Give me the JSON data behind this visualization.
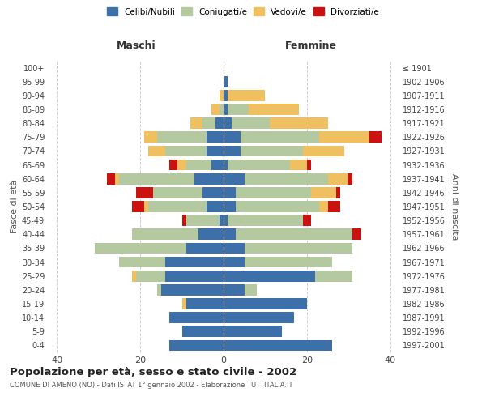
{
  "age_groups": [
    "0-4",
    "5-9",
    "10-14",
    "15-19",
    "20-24",
    "25-29",
    "30-34",
    "35-39",
    "40-44",
    "45-49",
    "50-54",
    "55-59",
    "60-64",
    "65-69",
    "70-74",
    "75-79",
    "80-84",
    "85-89",
    "90-94",
    "95-99",
    "100+"
  ],
  "birth_years": [
    "1997-2001",
    "1992-1996",
    "1987-1991",
    "1982-1986",
    "1977-1981",
    "1972-1976",
    "1967-1971",
    "1962-1966",
    "1957-1961",
    "1952-1956",
    "1947-1951",
    "1942-1946",
    "1937-1941",
    "1932-1936",
    "1927-1931",
    "1922-1926",
    "1917-1921",
    "1912-1916",
    "1907-1911",
    "1902-1906",
    "≤ 1901"
  ],
  "colors": {
    "celibe": "#3d6fa8",
    "coniugato": "#b5c9a0",
    "vedovo": "#f0c060",
    "divorziato": "#cc1111"
  },
  "maschi": {
    "celibe": [
      13,
      10,
      13,
      9,
      15,
      14,
      14,
      9,
      6,
      1,
      4,
      5,
      7,
      3,
      4,
      4,
      2,
      0,
      0,
      0,
      0
    ],
    "coniugato": [
      0,
      0,
      0,
      0,
      1,
      7,
      11,
      22,
      16,
      8,
      14,
      12,
      18,
      6,
      10,
      12,
      3,
      1,
      0,
      0,
      0
    ],
    "vedovo": [
      0,
      0,
      0,
      1,
      0,
      1,
      0,
      0,
      0,
      0,
      1,
      0,
      1,
      2,
      4,
      3,
      3,
      2,
      1,
      0,
      0
    ],
    "divorziato": [
      0,
      0,
      0,
      0,
      0,
      0,
      0,
      0,
      0,
      1,
      3,
      4,
      2,
      2,
      0,
      0,
      0,
      0,
      0,
      0,
      0
    ]
  },
  "femmine": {
    "celibe": [
      26,
      14,
      17,
      20,
      5,
      22,
      5,
      5,
      3,
      1,
      3,
      3,
      5,
      1,
      4,
      4,
      2,
      1,
      1,
      1,
      0
    ],
    "coniugato": [
      0,
      0,
      0,
      0,
      3,
      9,
      21,
      26,
      28,
      18,
      20,
      18,
      20,
      15,
      15,
      19,
      9,
      5,
      0,
      0,
      0
    ],
    "vedovo": [
      0,
      0,
      0,
      0,
      0,
      0,
      0,
      0,
      0,
      0,
      2,
      6,
      5,
      4,
      10,
      12,
      14,
      12,
      9,
      0,
      0
    ],
    "divorziato": [
      0,
      0,
      0,
      0,
      0,
      0,
      0,
      0,
      2,
      2,
      3,
      1,
      1,
      1,
      0,
      3,
      0,
      0,
      0,
      0,
      0
    ]
  },
  "xlim": 42,
  "title": "Popolazione per età, sesso e stato civile - 2002",
  "subtitle": "COMUNE DI AMENO (NO) - Dati ISTAT 1° gennaio 2002 - Elaborazione TUTTITALIA.IT",
  "xlabel_left": "Maschi",
  "xlabel_right": "Femmine",
  "ylabel": "Fasce di età",
  "ylabel_right": "Anni di nascita",
  "legend_labels": [
    "Celibi/Nubili",
    "Coniugati/e",
    "Vedovi/e",
    "Divorziati/e"
  ],
  "background_color": "#ffffff",
  "bar_height": 0.8
}
